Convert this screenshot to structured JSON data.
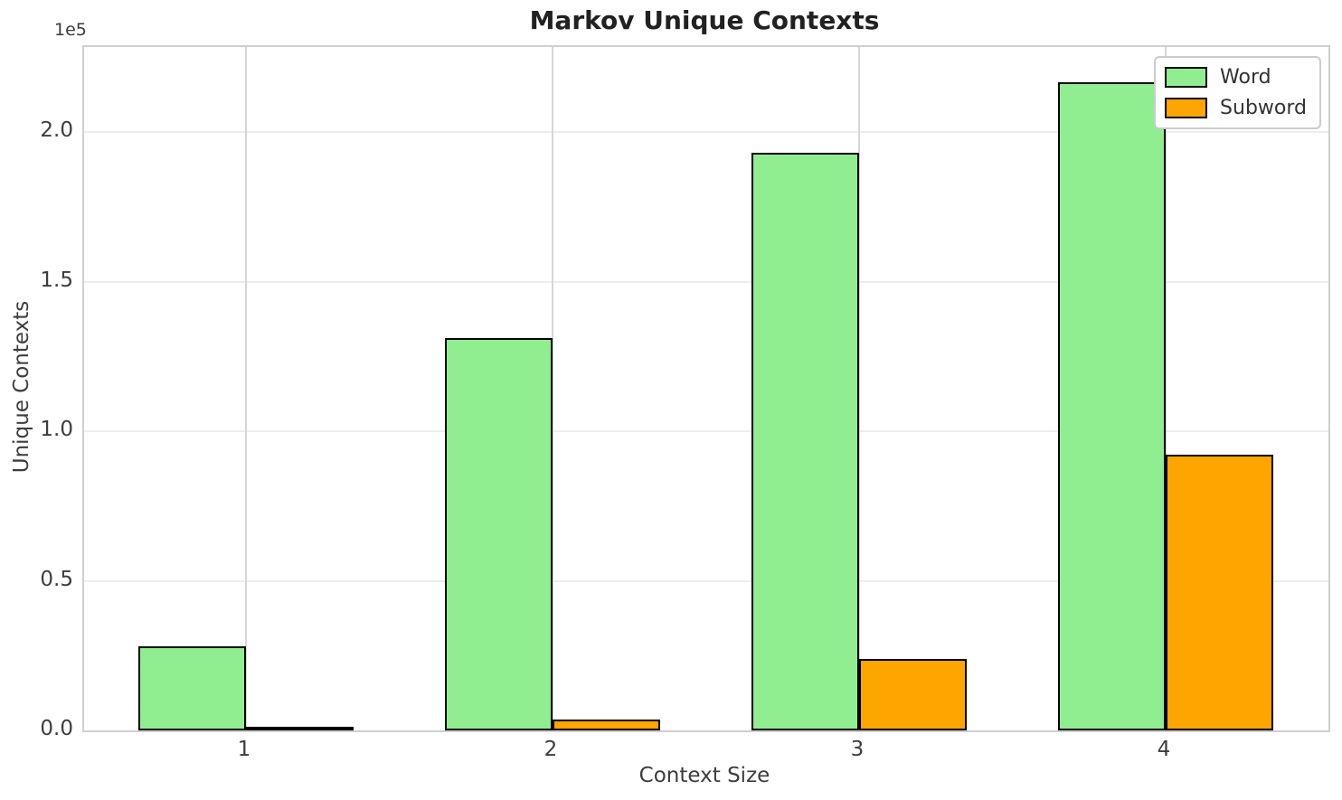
{
  "title": "Markov Unique Contexts",
  "chart_data": {
    "type": "bar",
    "title": "Markov Unique Contexts",
    "xlabel": "Context Size",
    "ylabel": "Unique Contexts",
    "y_offset_label": "1e5",
    "categories": [
      1,
      2,
      3,
      4
    ],
    "xtick_labels": [
      "1",
      "2",
      "3",
      "4"
    ],
    "series": [
      {
        "name": "Word",
        "color": "#90EE90",
        "values": [
          28000,
          131000,
          193000,
          216500
        ]
      },
      {
        "name": "Subword",
        "color": "#FFA500",
        "values": [
          400,
          3600,
          24000,
          92000
        ]
      }
    ],
    "bar_width_units": 0.35,
    "bar_edge_color": "#000000",
    "xlim": [
      0.472,
      4.531
    ],
    "ylim": [
      0,
      228400
    ],
    "yticks": [
      0,
      50000,
      100000,
      150000,
      200000
    ],
    "ytick_labels": [
      "0.0",
      "0.5",
      "1.0",
      "1.5",
      "2.0"
    ],
    "grid": true,
    "legend_position": "upper right"
  },
  "legend": {
    "entries": [
      {
        "label": "Word",
        "color": "#90EE90"
      },
      {
        "label": "Subword",
        "color": "#FFA500"
      }
    ]
  }
}
